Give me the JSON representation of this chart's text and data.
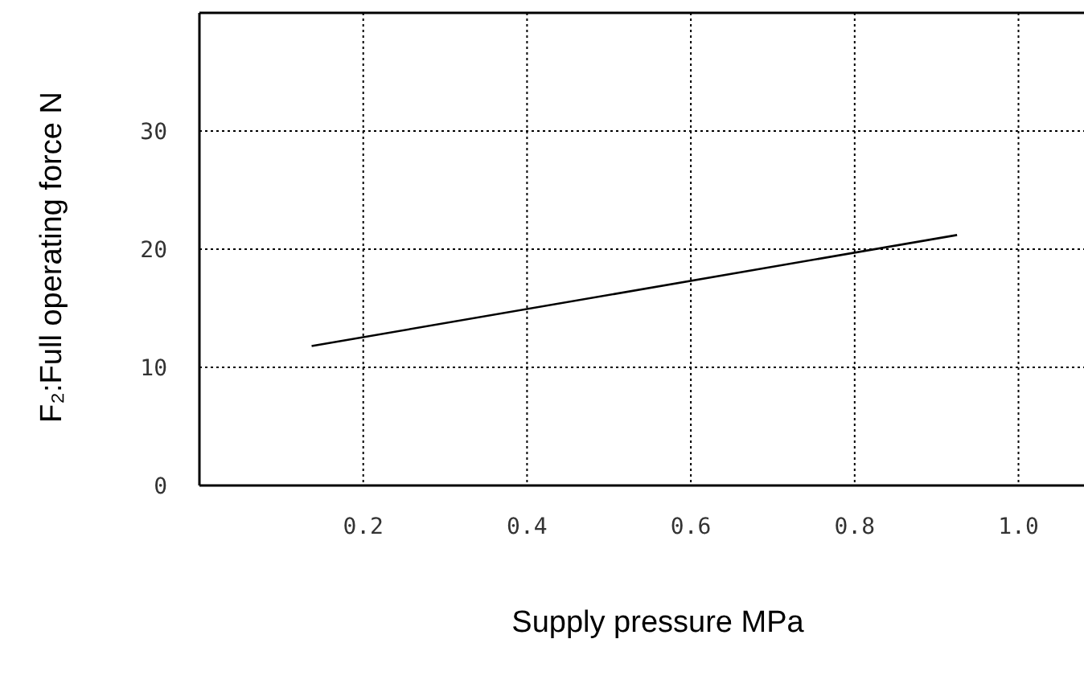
{
  "chart_data": {
    "type": "line",
    "xlabel": "Supply pressure MPa",
    "ylabel": "F₂:Full operating force N",
    "x": [
      0.137,
      0.925
    ],
    "series": [
      {
        "color": "#000000",
        "values": [
          11.8,
          21.2
        ]
      }
    ],
    "xlim": [
      0,
      1.08
    ],
    "ylim": [
      0,
      40
    ],
    "xticks": [
      0.2,
      0.4,
      0.6,
      0.8,
      {
        "value": 1,
        "label": "1.0"
      }
    ],
    "yticks": [
      0,
      10,
      20,
      30
    ],
    "grid": true,
    "marker": "none",
    "line_style": "solid"
  }
}
